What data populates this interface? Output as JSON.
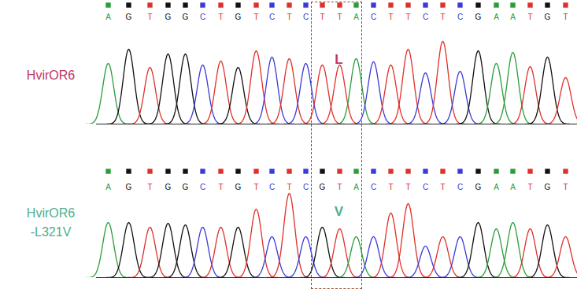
{
  "chart_data": [
    {
      "type": "chromatogram",
      "title": "HvirOR6",
      "color": "#c2365e",
      "x": [
        137,
        163,
        190,
        213,
        235,
        257,
        280,
        302,
        325,
        345,
        367,
        388,
        409,
        431,
        452,
        474,
        496,
        518,
        540,
        562,
        584,
        607,
        630,
        651,
        673,
        695,
        718
      ],
      "categories": [
        "A",
        "G",
        "T",
        "G",
        "G",
        "C",
        "T",
        "G",
        "T",
        "C",
        "T",
        "C",
        "T",
        "T",
        "A",
        "C",
        "T",
        "T",
        "C",
        "T",
        "C",
        "G",
        "A",
        "A",
        "T",
        "G",
        "T"
      ],
      "values": [
        77,
        95,
        72,
        89,
        89,
        75,
        80,
        72,
        93,
        85,
        83,
        77,
        75,
        75,
        83,
        79,
        75,
        95,
        65,
        105,
        67,
        93,
        77,
        91,
        73,
        85,
        59
      ],
      "colors": [
        "#2a9d3a",
        "#111111",
        "#e0302a",
        "#111111",
        "#111111",
        "#3a3ad8",
        "#e0302a",
        "#111111",
        "#e0302a",
        "#3a3ad8",
        "#e0302a",
        "#3a3ad8",
        "#e0302a",
        "#e0302a",
        "#2a9d3a",
        "#3a3ad8",
        "#e0302a",
        "#e0302a",
        "#3a3ad8",
        "#e0302a",
        "#3a3ad8",
        "#111111",
        "#2a9d3a",
        "#2a9d3a",
        "#e0302a",
        "#111111",
        "#e0302a"
      ],
      "xlim": [
        0,
        733
      ],
      "ylim": [
        0,
        117
      ],
      "tick_labels": false,
      "annotations": [
        {
          "text": "L",
          "x": 430,
          "y": 82,
          "color": "#c2365e"
        }
      ]
    },
    {
      "type": "chromatogram",
      "title": "HvirOR6\n-L321V",
      "color": "#4fae8a",
      "x": [
        137,
        163,
        190,
        213,
        235,
        257,
        280,
        302,
        325,
        345,
        367,
        388,
        409,
        431,
        452,
        474,
        496,
        518,
        540,
        562,
        584,
        607,
        630,
        651,
        673,
        695,
        718
      ],
      "categories": [
        "A",
        "G",
        "T",
        "G",
        "G",
        "C",
        "T",
        "G",
        "T",
        "C",
        "T",
        "C",
        "G",
        "T",
        "A",
        "C",
        "T",
        "T",
        "C",
        "T",
        "C",
        "G",
        "A",
        "A",
        "T",
        "G",
        "T"
      ],
      "values": [
        70,
        70,
        64,
        69,
        67,
        64,
        64,
        64,
        87,
        52,
        107,
        52,
        64,
        62,
        52,
        52,
        82,
        94,
        40,
        52,
        52,
        70,
        62,
        70,
        62,
        67,
        52
      ],
      "colors": [
        "#2a9d3a",
        "#111111",
        "#e0302a",
        "#111111",
        "#111111",
        "#3a3ad8",
        "#e0302a",
        "#111111",
        "#e0302a",
        "#3a3ad8",
        "#e0302a",
        "#3a3ad8",
        "#111111",
        "#e0302a",
        "#2a9d3a",
        "#3a3ad8",
        "#e0302a",
        "#e0302a",
        "#3a3ad8",
        "#e0302a",
        "#3a3ad8",
        "#111111",
        "#2a9d3a",
        "#2a9d3a",
        "#e0302a",
        "#111111",
        "#e0302a"
      ],
      "xlim": [
        0,
        733
      ],
      "ylim": [
        0,
        108
      ],
      "tick_labels": false,
      "annotations": [
        {
          "text": "V",
          "x": 430,
          "y": 84,
          "color": "#4fae8a"
        }
      ]
    }
  ]
}
